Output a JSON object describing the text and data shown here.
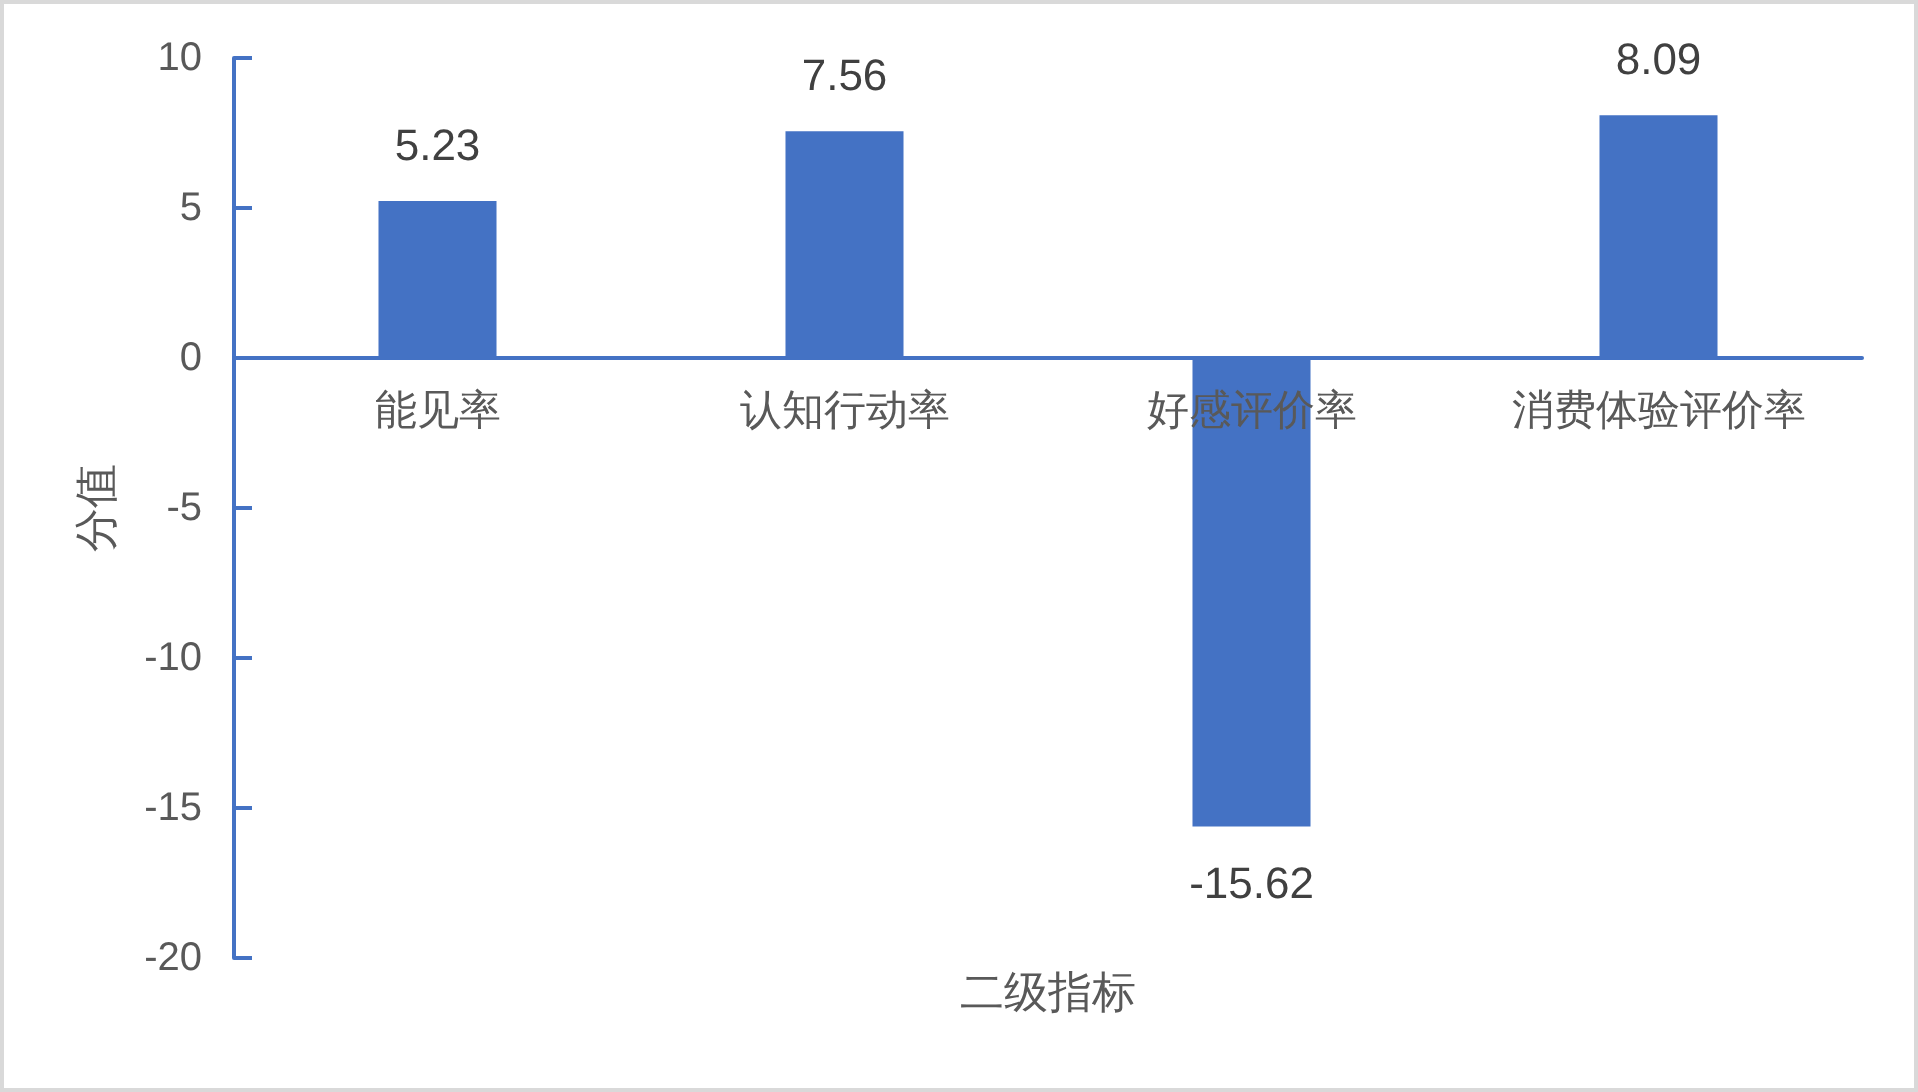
{
  "chart_data": {
    "type": "bar",
    "xlabel": "二级指标",
    "ylabel": "分值",
    "categories": [
      "能见率",
      "认知行动率",
      "好感评价率",
      "消费体验评价率"
    ],
    "values": [
      5.23,
      7.56,
      -15.62,
      8.09
    ],
    "color": "#4472c4",
    "ylim": [
      -20,
      10
    ],
    "yticks": [
      -20,
      -15,
      -10,
      -5,
      0,
      5,
      10
    ],
    "data_labels": true
  }
}
